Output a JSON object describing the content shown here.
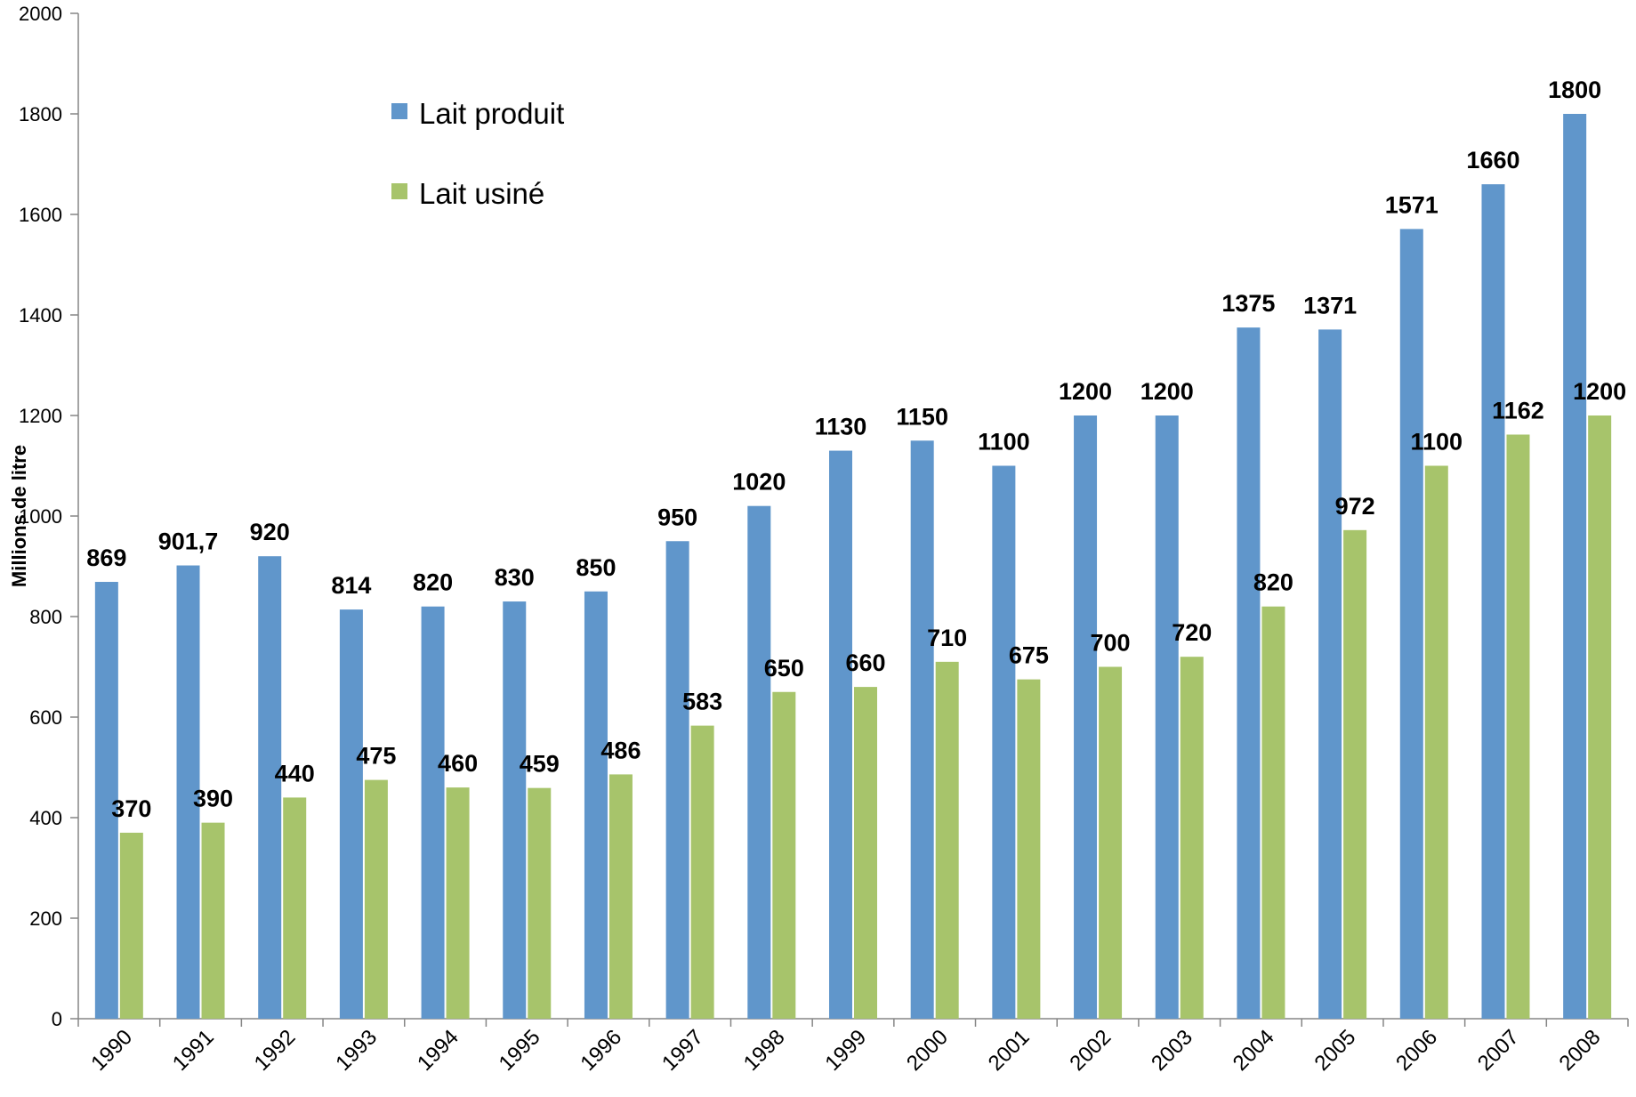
{
  "chart_data": {
    "type": "bar",
    "title": "",
    "xlabel": "",
    "ylabel": "Millions de litre",
    "ylim": [
      0,
      2000
    ],
    "y_ticks": [
      0,
      200,
      400,
      600,
      800,
      1000,
      1200,
      1400,
      1600,
      1800,
      2000
    ],
    "grid": false,
    "legend_position": "upper-left",
    "categories": [
      "1990",
      "1991",
      "1992",
      "1993",
      "1994",
      "1995",
      "1996",
      "1997",
      "1998",
      "1999",
      "2000",
      "2001",
      "2002",
      "2003",
      "2004",
      "2005",
      "2006",
      "2007",
      "2008"
    ],
    "series": [
      {
        "name": "Lait produit",
        "color": "#6096CB",
        "values": [
          869,
          901.7,
          920,
          814,
          820,
          830,
          850,
          950,
          1020,
          1130,
          1150,
          1100,
          1200,
          1200,
          1375,
          1371,
          1571,
          1660,
          1800
        ],
        "labels": [
          "869",
          "901,7",
          "920",
          "814",
          "820",
          "830",
          "850",
          "950",
          "1020",
          "1130",
          "1150",
          "1100",
          "1200",
          "1200",
          "1375",
          "1371",
          "1571",
          "1660",
          "1800"
        ]
      },
      {
        "name": "Lait usiné",
        "color": "#A7C46B",
        "values": [
          370,
          390,
          440,
          475,
          460,
          459,
          486,
          583,
          650,
          660,
          710,
          675,
          700,
          720,
          820,
          972,
          1100,
          1162,
          1200
        ],
        "labels": [
          "370",
          "390",
          "440",
          "475",
          "460",
          "459",
          "486",
          "583",
          "650",
          "660",
          "710",
          "675",
          "700",
          "720",
          "820",
          "972",
          "1100",
          "1162",
          "1200"
        ]
      }
    ]
  }
}
